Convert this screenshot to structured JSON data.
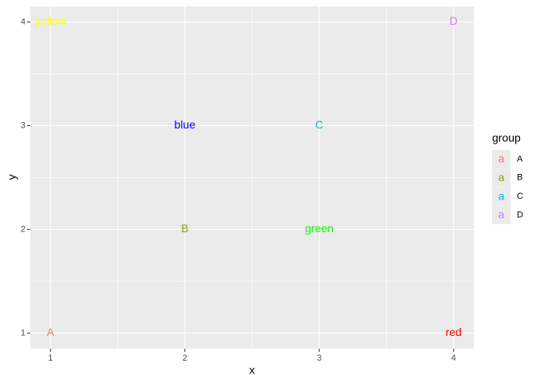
{
  "chart_data": {
    "type": "text",
    "x_label": "x",
    "y_label": "y",
    "xlim": [
      0.85,
      4.15
    ],
    "ylim": [
      0.85,
      4.15
    ],
    "xticks": [
      1,
      2,
      3,
      4
    ],
    "yticks": [
      1,
      2,
      3,
      4
    ],
    "minor_xticks": [
      1.5,
      2.5,
      3.5
    ],
    "minor_yticks": [
      1.5,
      2.5,
      3.5
    ],
    "grid": true,
    "legend_title": "group",
    "legend_key_glyph": "a",
    "legend_position": "right",
    "series": [
      {
        "name": "A",
        "color": "#F8766D",
        "x": [
          1
        ],
        "values": [
          1
        ],
        "labels": [
          "A"
        ]
      },
      {
        "name": "B",
        "color": "#7CAE00",
        "x": [
          2
        ],
        "values": [
          2
        ],
        "labels": [
          "B"
        ]
      },
      {
        "name": "C",
        "color": "#00BFC4",
        "x": [
          3
        ],
        "values": [
          3
        ],
        "labels": [
          "C"
        ]
      },
      {
        "name": "D",
        "color": "#C77CFF",
        "x": [
          4
        ],
        "values": [
          4
        ],
        "labels": [
          "D"
        ]
      }
    ],
    "annotations": [
      {
        "text": "yellow",
        "x": 1,
        "y": 4,
        "color": "#FFFF00"
      },
      {
        "text": "blue",
        "x": 2,
        "y": 3,
        "color": "#0000FF"
      },
      {
        "text": "green",
        "x": 3,
        "y": 2,
        "color": "#00FF00"
      },
      {
        "text": "red",
        "x": 4,
        "y": 1,
        "color": "#FF0000"
      }
    ]
  }
}
